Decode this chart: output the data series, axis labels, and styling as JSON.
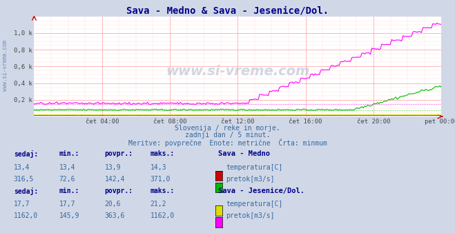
{
  "title": "Sava - Medno & Sava - Jesenice/Dol.",
  "subtitle1": "Slovenija / reke in morje.",
  "subtitle2": "zadnji dan / 5 minut.",
  "subtitle3": "Meritve: povprečne  Enote: metrične  Črta: minmum",
  "background_color": "#d0d8e8",
  "plot_bg_color": "#ffffff",
  "grid_color_major": "#ffaaaa",
  "grid_color_minor": "#ffdddd",
  "y_labels": [
    "0,2 k",
    "0,4 k",
    "0,6 k",
    "0,8 k",
    "1,0 k"
  ],
  "y_ticks": [
    200,
    400,
    600,
    800,
    1000
  ],
  "ylim": [
    0,
    1200
  ],
  "watermark": "www.si-vreme.com",
  "sava_medno": {
    "label": "Sava - Medno",
    "temp_color": "#cc0000",
    "temp_min": 13.4,
    "pretok_color": "#00bb00",
    "pretok_min": 72.6,
    "pretok_max": 371.0
  },
  "sava_jesenice": {
    "label": "Sava - Jesenice/Dol.",
    "temp_color": "#dddd00",
    "temp_min": 17.7,
    "pretok_color": "#ff00ff",
    "pretok_min": 145.9,
    "pretok_max": 1162.0
  },
  "table_headers": [
    "sedaj:",
    "min.:",
    "povpr.:",
    "maks.:"
  ],
  "medno_temp_row": [
    "13,4",
    "13,4",
    "13,9",
    "14,3"
  ],
  "medno_pretok_row": [
    "316,5",
    "72,6",
    "142,4",
    "371,0"
  ],
  "jesenice_temp_row": [
    "17,7",
    "17,7",
    "20,6",
    "21,2"
  ],
  "jesenice_pretok_row": [
    "1162,0",
    "145,9",
    "363,6",
    "1162,0"
  ]
}
